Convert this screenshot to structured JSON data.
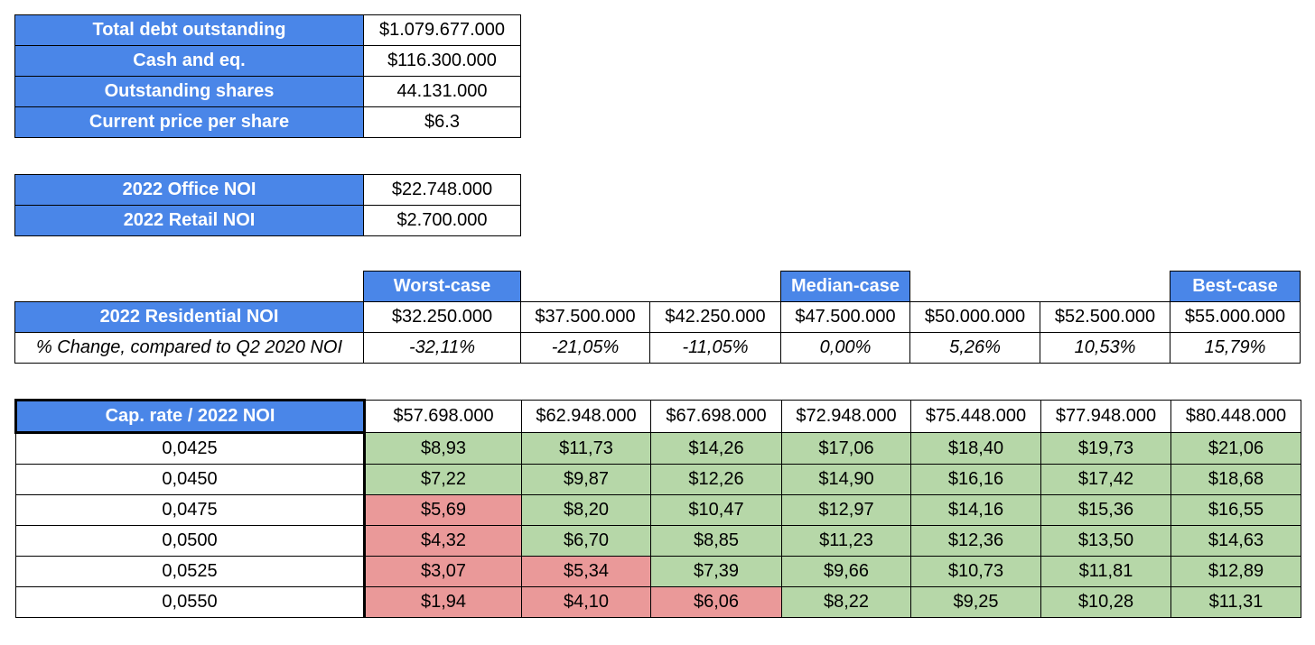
{
  "info": [
    {
      "label": "Total debt outstanding",
      "value": "$1.079.677.000"
    },
    {
      "label": "Cash and eq.",
      "value": "$116.300.000"
    },
    {
      "label": "Outstanding shares",
      "value": "44.131.000"
    },
    {
      "label": "Current price per share",
      "value": "$6.3"
    }
  ],
  "noi": [
    {
      "label": "2022 Office NOI",
      "value": "$22.748.000"
    },
    {
      "label": "2022 Retail NOI",
      "value": "$2.700.000"
    }
  ],
  "residential": {
    "cases": [
      "Worst-case",
      "",
      "",
      "Median-case",
      "",
      "",
      "Best-case"
    ],
    "row_label": "2022 Residential NOI",
    "values": [
      "$32.250.000",
      "$37.500.000",
      "$42.250.000",
      "$47.500.000",
      "$50.000.000",
      "$52.500.000",
      "$55.000.000"
    ],
    "change_label": "% Change, compared to Q2 2020 NOI",
    "changes": [
      "-32,11%",
      "-21,05%",
      "-11,05%",
      "0,00%",
      "5,26%",
      "10,53%",
      "15,79%"
    ]
  },
  "matrix": {
    "corner_label": "Cap. rate / 2022 NOI",
    "columns": [
      "$57.698.000",
      "$62.948.000",
      "$67.698.000",
      "$72.948.000",
      "$75.448.000",
      "$77.948.000",
      "$80.448.000"
    ],
    "rows": [
      {
        "rate": "0,0425",
        "values": [
          "$8,93",
          "$11,73",
          "$14,26",
          "$17,06",
          "$18,40",
          "$19,73",
          "$21,06"
        ]
      },
      {
        "rate": "0,0450",
        "values": [
          "$7,22",
          "$9,87",
          "$12,26",
          "$14,90",
          "$16,16",
          "$17,42",
          "$18,68"
        ]
      },
      {
        "rate": "0,0475",
        "values": [
          "$5,69",
          "$8,20",
          "$10,47",
          "$12,97",
          "$14,16",
          "$15,36",
          "$16,55"
        ]
      },
      {
        "rate": "0,0500",
        "values": [
          "$4,32",
          "$6,70",
          "$8,85",
          "$11,23",
          "$12,36",
          "$13,50",
          "$14,63"
        ]
      },
      {
        "rate": "0,0525",
        "values": [
          "$3,07",
          "$5,34",
          "$7,39",
          "$9,66",
          "$10,73",
          "$11,81",
          "$12,89"
        ]
      },
      {
        "rate": "0,0550",
        "values": [
          "$1,94",
          "$4,10",
          "$6,06",
          "$8,22",
          "$9,25",
          "$10,28",
          "$11,31"
        ]
      }
    ],
    "colors": {
      "above_price": "#b6d7a8",
      "below_price": "#ea9999"
    },
    "current_price": 6.3
  }
}
